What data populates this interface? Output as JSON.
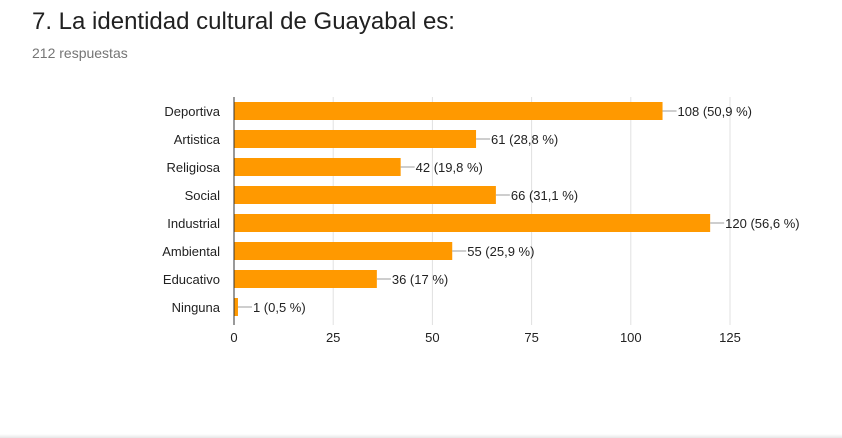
{
  "question": {
    "title": "7. La identidad cultural de Guayabal es:",
    "response_count": "212 respuestas"
  },
  "colors": {
    "bar": "#FF9900",
    "grid": "#e0e0e0",
    "axis": "#333333",
    "label": "#222222"
  },
  "chart_data": {
    "type": "bar",
    "orientation": "horizontal",
    "categories": [
      "Deportiva",
      "Artistica",
      "Religiosa",
      "Social",
      "Industrial",
      "Ambiental",
      "Educativo",
      "Ninguna"
    ],
    "values": [
      108,
      61,
      42,
      66,
      120,
      55,
      36,
      1
    ],
    "data_labels": [
      "108 (50,9 %)",
      "61 (28,8 %)",
      "42 (19,8 %)",
      "66 (31,1 %)",
      "120 (56,6 %)",
      "55 (25,9 %)",
      "36 (17 %)",
      "1 (0,5 %)"
    ],
    "xlim": [
      0,
      125
    ],
    "xticks": [
      "0",
      "25",
      "50",
      "75",
      "100",
      "125"
    ],
    "grid": true,
    "legend": "none"
  }
}
